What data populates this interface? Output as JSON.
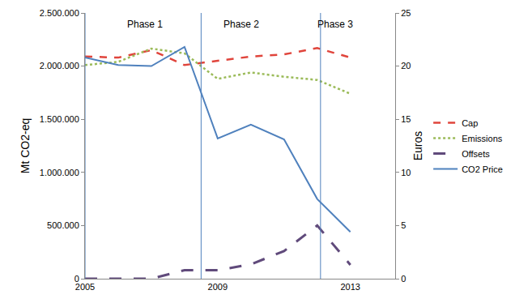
{
  "chart_data": {
    "type": "line",
    "x": [
      2005,
      2006,
      2007,
      2008,
      2009,
      2010,
      2011,
      2012,
      2013
    ],
    "xlim": [
      2005,
      2014.35
    ],
    "xticks": [
      2005,
      2009,
      2013
    ],
    "ylabel": "Mt CO2-eq",
    "ylim": [
      0,
      2500000
    ],
    "yticks": [
      0,
      {
        "value": 500000,
        "label": "500.000"
      },
      {
        "value": 1000000,
        "label": "1.000.000"
      },
      {
        "value": 1500000,
        "label": "1.500.000"
      },
      {
        "value": 2000000,
        "label": "2.000.000"
      },
      {
        "value": 2500000,
        "label": "2.500.000"
      }
    ],
    "y2label": "Euros",
    "y2lim": [
      0,
      25
    ],
    "y2ticks": [
      0,
      5,
      10,
      15,
      20,
      25
    ],
    "grid": false,
    "legend": "right",
    "phases": [
      {
        "label": "Phase 1",
        "start": 2005,
        "label_x": 2006.8
      },
      {
        "label": "Phase 2",
        "start": 2008.5,
        "label_x": 2009.7
      },
      {
        "label": "Phase 3",
        "start": 2012.1,
        "label_x": 2012.55
      }
    ],
    "phase_color": "#4f81bd",
    "series": [
      {
        "name": "Cap",
        "color": "#e0453c",
        "line_style": "dashed",
        "values": [
          2090000,
          2080000,
          2150000,
          2010000,
          2050000,
          2090000,
          2110000,
          2170000,
          2080000
        ]
      },
      {
        "name": "Emissions",
        "color": "#9bbb59",
        "line_style": "dotted",
        "values": [
          2010000,
          2040000,
          2165000,
          2120000,
          1880000,
          1940000,
          1900000,
          1870000,
          1740000
        ]
      },
      {
        "name": "Offsets",
        "color": "#604a7b",
        "line_style": "long_dashed",
        "values": [
          0,
          0,
          0,
          80000,
          80000,
          135000,
          260000,
          500000,
          130000
        ]
      },
      {
        "name": "CO2 Price",
        "color": "#4f81bd",
        "line_style": "solid",
        "axis": "y2",
        "values": [
          20.8,
          20.1,
          20.0,
          21.8,
          13.2,
          14.5,
          13.1,
          7.5,
          4.4
        ]
      }
    ]
  }
}
